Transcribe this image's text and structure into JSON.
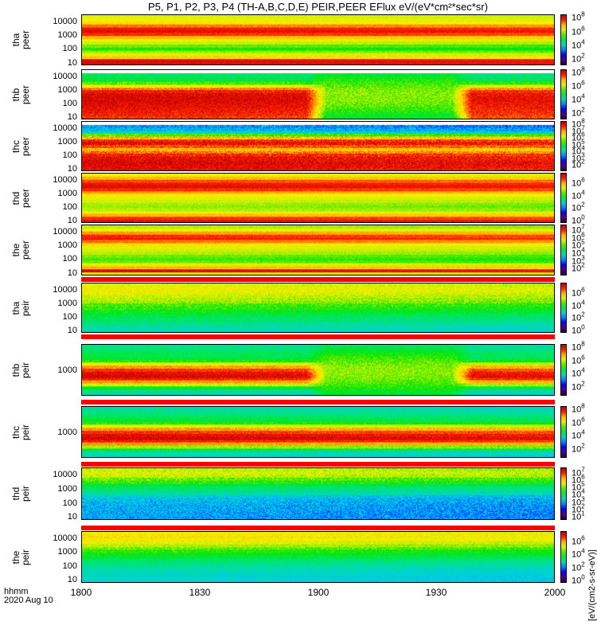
{
  "chart_data": {
    "type": "heatmap",
    "title": "P5, P1, P2, P3, P4 (TH-A,B,C,D,E) PEIR,PEER EFlux eV/(eV*cm²*sec*sr)",
    "x_axis": {
      "ticks": [
        "1800",
        "1830",
        "1900",
        "1930",
        "2000"
      ],
      "tick_minutes": [
        0,
        30,
        60,
        90,
        120
      ],
      "label": "hhmm",
      "date": "2020 Aug 10",
      "range_minutes": [
        0,
        120
      ]
    },
    "colorbar_unit": "[eV/(cm2-s-sr-eV)]",
    "panels": [
      {
        "probe": "tha",
        "instrument": "peer",
        "ylim_log": [
          0.8,
          4.5
        ],
        "yticks": [
          "10000",
          "1000",
          "100",
          "10"
        ],
        "ytick_values": [
          10000,
          1000,
          100,
          10
        ],
        "cbar_range": [
          1,
          8.4
        ],
        "cbar_exponents": [
          "8",
          "6",
          "4",
          "2"
        ],
        "profile": [
          0.7,
          0.72,
          0.76,
          0.85,
          0.92,
          0.95,
          0.9,
          0.8,
          0.72,
          0.68,
          0.62,
          0.58,
          0.64,
          0.7,
          0.78,
          0.96,
          0.96
        ],
        "noise": 0.03,
        "gap": null
      },
      {
        "probe": "thb",
        "instrument": "peer",
        "ylim_log": [
          0.8,
          4.5
        ],
        "yticks": [
          "10000",
          "1000",
          "100",
          "10"
        ],
        "ytick_values": [
          10000,
          1000,
          100,
          10
        ],
        "cbar_range": [
          1,
          8.4
        ],
        "cbar_exponents": [
          "8",
          "6",
          "4",
          "2"
        ],
        "profile": [
          -1,
          0.48,
          0.5,
          0.52,
          0.6,
          0.72,
          0.85,
          0.93,
          0.96,
          0.97,
          0.97,
          0.96,
          0.95,
          0.94,
          0.93,
          0.92,
          0.9
        ],
        "noise": 0.06,
        "gap": [
          57,
          99
        ]
      },
      {
        "probe": "thc",
        "instrument": "peer",
        "ylim_log": [
          0.8,
          4.5
        ],
        "yticks": [
          "10000",
          "1000",
          "100",
          "10"
        ],
        "ytick_values": [
          10000,
          1000,
          100,
          10
        ],
        "cbar_range": [
          1,
          8.4
        ],
        "cbar_exponents": [
          "8",
          "7",
          "6",
          "5",
          "4",
          "3",
          "2"
        ],
        "profile": [
          -1,
          0.32,
          0.35,
          0.4,
          0.6,
          0.8,
          0.92,
          0.95,
          0.88,
          0.8,
          0.85,
          0.92,
          0.95,
          0.96,
          0.97,
          0.96,
          0.95
        ],
        "noise": 0.07,
        "gap": null
      },
      {
        "probe": "thd",
        "instrument": "peer",
        "ylim_log": [
          0.8,
          4.5
        ],
        "yticks": [
          "10000",
          "1000",
          "100",
          "10"
        ],
        "ytick_values": [
          10000,
          1000,
          100,
          10
        ],
        "cbar_range": [
          -0.5,
          7.5
        ],
        "cbar_exponents": [
          "6",
          "4",
          "2",
          "0"
        ],
        "profile": [
          0.72,
          0.8,
          0.88,
          0.93,
          0.95,
          0.9,
          0.82,
          0.75,
          0.7,
          0.68,
          0.65,
          0.64,
          0.66,
          0.72,
          0.8,
          0.9,
          0.95
        ],
        "noise": 0.03,
        "gap": null
      },
      {
        "probe": "the",
        "instrument": "peer",
        "ylim_log": [
          0.8,
          4.5
        ],
        "yticks": [
          "10000",
          "1000",
          "100",
          "10"
        ],
        "ytick_values": [
          10000,
          1000,
          100,
          10
        ],
        "cbar_range": [
          1,
          7.6
        ],
        "cbar_exponents": [
          "7",
          "6",
          "5",
          "4",
          "3",
          "2"
        ],
        "profile": [
          0.66,
          0.72,
          0.82,
          0.9,
          0.92,
          0.85,
          0.76,
          0.7,
          0.68,
          0.66,
          0.62,
          0.6,
          0.62,
          0.7,
          0.8,
          0.96,
          0.7
        ],
        "noise": 0.03,
        "gap": null
      },
      {
        "probe": "tha",
        "instrument": "peir",
        "ylim_log": [
          0.8,
          4.5
        ],
        "yticks": [
          "10000",
          "1000",
          "100",
          "10"
        ],
        "ytick_values": [
          10000,
          1000,
          100,
          10
        ],
        "cbar_range": [
          -0.5,
          7.5
        ],
        "cbar_exponents": [
          "6",
          "4",
          "2",
          "0"
        ],
        "profile": [
          0.7,
          0.72,
          0.72,
          0.7,
          0.68,
          0.66,
          0.64,
          0.6,
          0.58,
          0.55,
          0.52,
          0.5,
          0.48,
          0.46,
          0.44,
          0.42,
          0.42
        ],
        "noise": 0.06,
        "gap": null
      },
      {
        "probe": "thb",
        "instrument": "peir",
        "ylim_log": [
          2.3,
          3.7
        ],
        "yticks": [
          "1000"
        ],
        "ytick_values": [
          1000
        ],
        "cbar_range": [
          0.5,
          8.4
        ],
        "cbar_exponents": [
          "8",
          "6",
          "4",
          "2"
        ],
        "profile": [
          0.45,
          0.47,
          0.5,
          0.5,
          0.52,
          0.58,
          0.7,
          0.82,
          0.9,
          0.95,
          0.97,
          0.92,
          0.82,
          0.68,
          0.52,
          0.45,
          0.42
        ],
        "noise": 0.05,
        "gap": [
          57,
          99
        ]
      },
      {
        "probe": "thc",
        "instrument": "peir",
        "ylim_log": [
          2.3,
          3.7
        ],
        "yticks": [
          "1000"
        ],
        "ytick_values": [
          1000
        ],
        "cbar_range": [
          0.5,
          8.4
        ],
        "cbar_exponents": [
          "8",
          "6",
          "4",
          "2"
        ],
        "profile": [
          0.42,
          0.45,
          0.47,
          0.5,
          0.52,
          0.58,
          0.7,
          0.82,
          0.9,
          0.95,
          0.97,
          0.92,
          0.82,
          0.65,
          0.5,
          0.42,
          0.4
        ],
        "noise": 0.05,
        "gap": null
      },
      {
        "probe": "thd",
        "instrument": "peir",
        "ylim_log": [
          0.8,
          4.5
        ],
        "yticks": [
          "10000",
          "1000",
          "100",
          "10"
        ],
        "ytick_values": [
          10000,
          1000,
          100,
          10
        ],
        "cbar_range": [
          0.5,
          7.6
        ],
        "cbar_exponents": [
          "7",
          "6",
          "5",
          "4",
          "3",
          "2",
          "1"
        ],
        "profile": [
          0.68,
          0.7,
          0.68,
          0.62,
          0.58,
          0.52,
          0.48,
          0.45,
          0.42,
          0.38,
          0.36,
          0.35,
          0.34,
          0.34,
          0.33,
          0.33,
          0.33
        ],
        "noise": 0.07,
        "gap": null
      },
      {
        "probe": "the",
        "instrument": "peir",
        "ylim_log": [
          0.8,
          4.5
        ],
        "yticks": [
          "10000",
          "1000",
          "100",
          "10"
        ],
        "ytick_values": [
          10000,
          1000,
          100,
          10
        ],
        "cbar_range": [
          -0.5,
          7.5
        ],
        "cbar_exponents": [
          "6",
          "4",
          "2",
          "0"
        ],
        "profile": [
          0.72,
          0.76,
          0.74,
          0.7,
          0.66,
          0.62,
          0.58,
          0.55,
          0.52,
          0.48,
          0.46,
          0.44,
          0.42,
          0.41,
          0.4,
          0.39,
          0.39
        ],
        "noise": 0.05,
        "gap": null
      }
    ]
  }
}
